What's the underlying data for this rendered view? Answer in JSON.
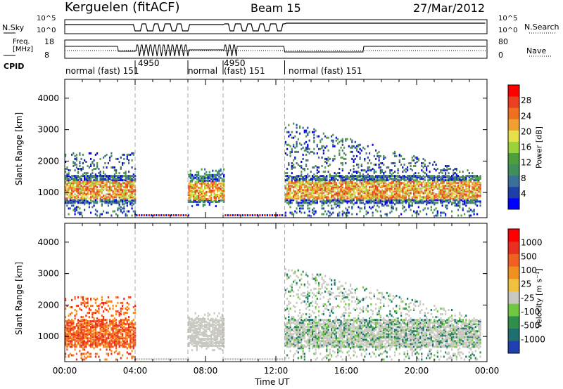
{
  "header": {
    "station": "Kerguelen (fitACF)",
    "beam": "Beam 15",
    "date": "27/Mar/2012"
  },
  "strip1": {
    "left_label": "N.Sky",
    "right_label": "N.Search",
    "left_ticks": [
      "10^5",
      "10^0"
    ],
    "right_ticks": [
      "10^5",
      "10^0"
    ]
  },
  "strip2": {
    "left_label_1": "Freq.",
    "left_label_2": "[MHz]",
    "right_label": "Nave",
    "left_ticks": [
      "18",
      "8"
    ],
    "right_ticks": [
      "80",
      "0"
    ]
  },
  "cpid": {
    "label": "CPID",
    "segments": [
      {
        "start_h": 0.0,
        "end_h": 4.0,
        "text": "normal (fast)  151"
      },
      {
        "start_h": 4.0,
        "end_h": 7.0,
        "text": "4950"
      },
      {
        "start_h": 7.0,
        "end_h": 9.0,
        "text": "normal"
      },
      {
        "start_h": 9.0,
        "end_h": 12.5,
        "text": "(fast)  151"
      },
      {
        "start_h": 12.5,
        "end_h": 24.0,
        "text": "normal (fast)  151"
      }
    ],
    "extra_label": "4950"
  },
  "chart_data": [
    {
      "type": "heatmap",
      "name": "Power",
      "ylabel": "Slant Range [km]",
      "ylim": [
        200,
        4600
      ],
      "yticks": [
        "1000",
        "2000",
        "3000",
        "4000"
      ],
      "xlim_hours": [
        0,
        24
      ],
      "colorbar": {
        "label": "Power [dB]",
        "ticks": [
          "28",
          "24",
          "20",
          "16",
          "12",
          "8",
          "4"
        ],
        "colors": [
          "#0000ff",
          "#1f3fa8",
          "#3a6f9a",
          "#3e8f5a",
          "#4f9e3c",
          "#9bd23a",
          "#e8e04a",
          "#f0a030",
          "#f07020",
          "#e84020",
          "#ff0000"
        ]
      },
      "regions": [
        {
          "t0": 0.0,
          "t1": 4.0,
          "r0": 300,
          "r1": 2400,
          "level": "mixed"
        },
        {
          "t0": 7.0,
          "t1": 9.0,
          "r0": 700,
          "r1": 1800,
          "level": "high"
        },
        {
          "t0": 12.5,
          "t1": 22.5,
          "r0": 300,
          "r1": 3500,
          "level": "mixed"
        }
      ],
      "gaps_hours": [
        [
          4.0,
          7.0
        ],
        [
          9.0,
          12.5
        ]
      ]
    },
    {
      "type": "heatmap",
      "name": "Velocity",
      "ylabel": "Slant Range [km]",
      "ylim": [
        200,
        4600
      ],
      "yticks": [
        "1000",
        "2000",
        "3000",
        "4000"
      ],
      "xlim_hours": [
        0,
        24
      ],
      "colorbar": {
        "label": "Velocity [m s⁻¹]",
        "ticks": [
          "1000",
          "500",
          "100",
          "25",
          "-25",
          "-100",
          "-500",
          "-1000"
        ],
        "colors": [
          "#2040b0",
          "#1f6f70",
          "#2f8f4a",
          "#6fc840",
          "#c8c8c0",
          "#f0c040",
          "#f09020",
          "#f06020",
          "#e83020",
          "#ff0000"
        ]
      }
    }
  ],
  "xaxis": {
    "label": "Time UT",
    "ticks": [
      "00:00",
      "04:00",
      "08:00",
      "12:00",
      "16:00",
      "20:00",
      "00:00"
    ]
  }
}
